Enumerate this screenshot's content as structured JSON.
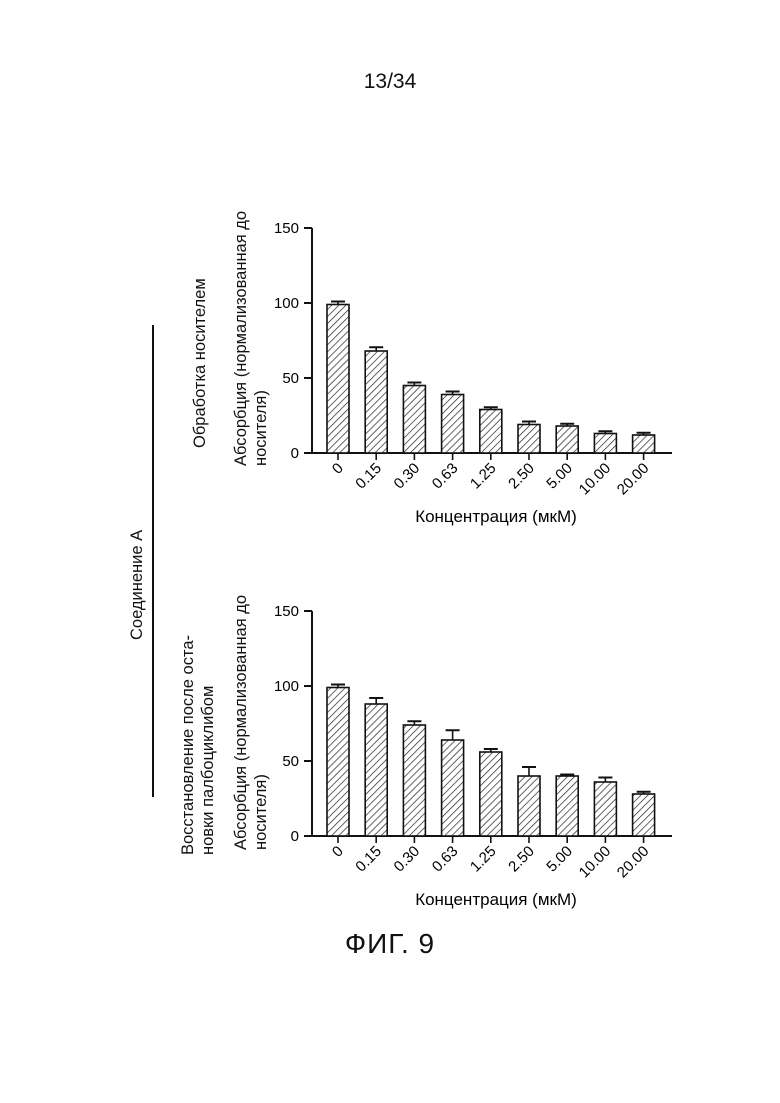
{
  "page": {
    "number": "13/34",
    "figure_label": "ФИГ. 9",
    "compound_label": "Соединение А"
  },
  "chart_data": [
    {
      "type": "bar",
      "panel_label": "Обработка носителем",
      "ylabel_lines": [
        "Абсорбция (нормализованная до",
        "носителя)"
      ],
      "xlabel": "Концентрация (мкМ)",
      "categories": [
        "0",
        "0.15",
        "0.30",
        "0.63",
        "1.25",
        "2.50",
        "5.00",
        "10.00",
        "20.00"
      ],
      "values": [
        99,
        68,
        45,
        39,
        29,
        19,
        18,
        13,
        12
      ],
      "errors": [
        2,
        2.5,
        2,
        2,
        1.5,
        2,
        1.5,
        1.5,
        1.5
      ],
      "ylim": [
        0,
        150
      ],
      "yticks": [
        0,
        50,
        100,
        150
      ],
      "bar_pattern": "diagonal-hatch"
    },
    {
      "type": "bar",
      "panel_label_lines": [
        "Восстановление после оста-",
        "новки палбоциклибом"
      ],
      "ylabel_lines": [
        "Абсорбция (нормализованная до",
        "носителя)"
      ],
      "xlabel": "Концентрация (мкМ)",
      "categories": [
        "0",
        "0.15",
        "0.30",
        "0.63",
        "1.25",
        "2.50",
        "5.00",
        "10.00",
        "20.00"
      ],
      "values": [
        99,
        88,
        74,
        64,
        56,
        40,
        40,
        36,
        28
      ],
      "errors": [
        2,
        4,
        2.5,
        6.5,
        2,
        6,
        1,
        3,
        1.5
      ],
      "ylim": [
        0,
        150
      ],
      "yticks": [
        0,
        50,
        100,
        150
      ],
      "bar_pattern": "diagonal-hatch"
    }
  ]
}
